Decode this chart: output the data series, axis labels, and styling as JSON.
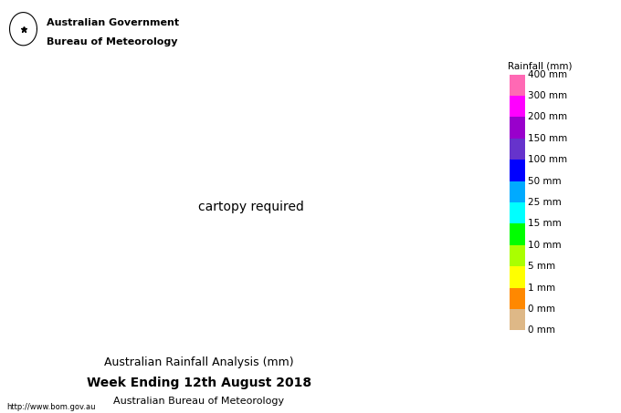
{
  "title": "Australian Rainfall Analysis (mm)",
  "subtitle": "Week Ending 12th August 2018",
  "subtitle2": "Australian Bureau of Meteorology",
  "gov_line1": "Australian Government",
  "gov_line2": "Bureau of Meteorology",
  "url": "http://www.bom.gov.au",
  "colorbar_title": "Rainfall (mm)",
  "cb_colors": [
    "#ff69b4",
    "#ff00ff",
    "#9900cc",
    "#6633cc",
    "#0000ff",
    "#00aaff",
    "#00ffff",
    "#00ff00",
    "#aaff00",
    "#ffff00",
    "#ff8800",
    "#deb887",
    "#f5f5f5"
  ],
  "cb_labels": [
    "400 mm",
    "300 mm",
    "200 mm",
    "150 mm",
    "100 mm",
    "50 mm",
    "25 mm",
    "15 mm",
    "10 mm",
    "5 mm",
    "1 mm",
    "0 mm"
  ],
  "boundaries": [
    0,
    1,
    5,
    10,
    15,
    25,
    50,
    100,
    150,
    200,
    300,
    400,
    500
  ],
  "bg_color": "#ffffff",
  "fig_width": 6.8,
  "fig_height": 4.53,
  "dpi": 100,
  "map_extent": [
    112,
    154,
    -44.5,
    -9.5
  ]
}
